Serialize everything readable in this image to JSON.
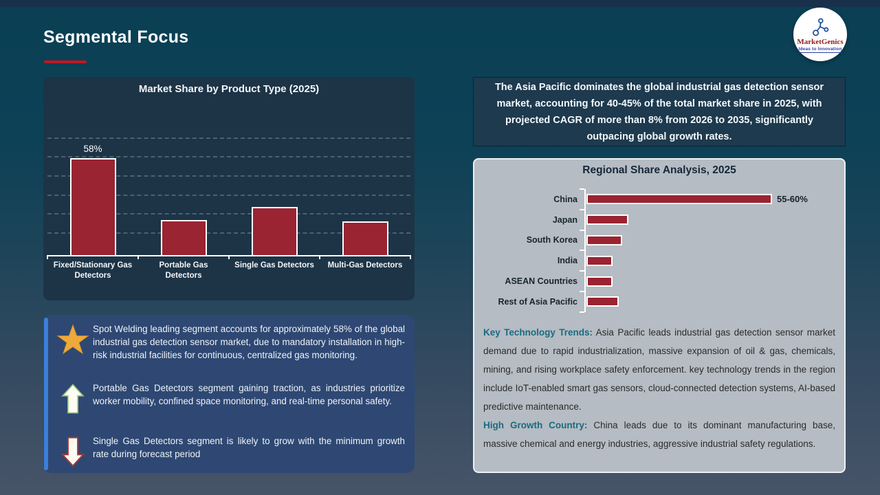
{
  "slide": {
    "title": "Segmental Focus"
  },
  "logo": {
    "name": "MarketGenics",
    "tagline": "Ideas to Innovation"
  },
  "callout": {
    "text": "The Asia Pacific dominates the global industrial gas detection sensor market, accounting for 40-45% of the total market share in 2025, with projected CAGR of more than 8% from 2026 to 2035, significantly outpacing global growth rates."
  },
  "chart_data": [
    {
      "type": "bar",
      "orientation": "vertical",
      "title": "Market Share by Product Type (2025)",
      "categories": [
        "Fixed/Stationary Gas Detectors",
        "Portable Gas Detectors",
        "Single Gas Detectors",
        "Multi-Gas Detectors"
      ],
      "values": [
        58,
        21,
        29,
        20
      ],
      "data_labels": [
        "58%",
        "",
        "",
        ""
      ],
      "xlabel": "",
      "ylabel": "",
      "ylim": [
        0,
        92
      ],
      "grid": "dashed-horizontal",
      "legend": "none",
      "bar_color": "#9a2431",
      "bar_border": "#ffffff"
    },
    {
      "type": "bar",
      "orientation": "horizontal",
      "title": "Regional Share Analysis, 2025",
      "categories": [
        "China",
        "Japan",
        "South Korea",
        "India",
        "ASEAN Countries",
        "Rest of Asia Pacific"
      ],
      "values": [
        57.5,
        13,
        11,
        8,
        8,
        10
      ],
      "data_labels": [
        "55-60%",
        "",
        "",
        "",
        "",
        ""
      ],
      "xlabel": "",
      "ylabel": "",
      "xlim": [
        0,
        100
      ],
      "grid": "off",
      "legend": "none",
      "bar_color": "#9a2431",
      "bar_border": "#ffffff"
    }
  ],
  "insights": [
    {
      "icon": "star-icon",
      "text": "Spot Welding  leading segment accounts for approximately 58% of the global industrial gas detection sensor market, due to mandatory installation in high-risk industrial facilities for continuous, centralized gas monitoring."
    },
    {
      "icon": "up-arrow-icon",
      "text": "Portable Gas Detectors segment gaining traction, as industries prioritize worker mobility, confined space monitoring, and real-time personal safety."
    },
    {
      "icon": "down-arrow-icon",
      "text": "Single Gas Detectors segment is likely to grow with the minimum growth rate during forecast period"
    }
  ],
  "regional_notes": [
    {
      "heading": "Key Technology Trends:",
      "text": " Asia Pacific leads industrial gas detection sensor market demand due to rapid industrialization, massive expansion of oil & gas, chemicals, mining, and rising workplace safety enforcement. key technology trends in the region include IoT-enabled smart gas sensors, cloud-connected detection systems, AI-based predictive maintenance."
    },
    {
      "heading": "High Growth Country:",
      "text": " China leads due to its dominant manufacturing base, massive chemical and energy industries, aggressive industrial safety regulations."
    }
  ],
  "colors": {
    "background_top": "#0a3f54",
    "background_bottom": "#475468",
    "top_strip": "#19304a",
    "accent_red": "#c4161f",
    "bar_red": "#9a2431",
    "panel_navy": "#1d3447",
    "callout_navy": "#1d3a4e",
    "insight_blue": "#2e4873",
    "stripe_blue": "#3a80da",
    "gray_panel": "#b5bcc3",
    "teal_heading": "#1a6b80",
    "star_gold": "#edaa3c"
  }
}
